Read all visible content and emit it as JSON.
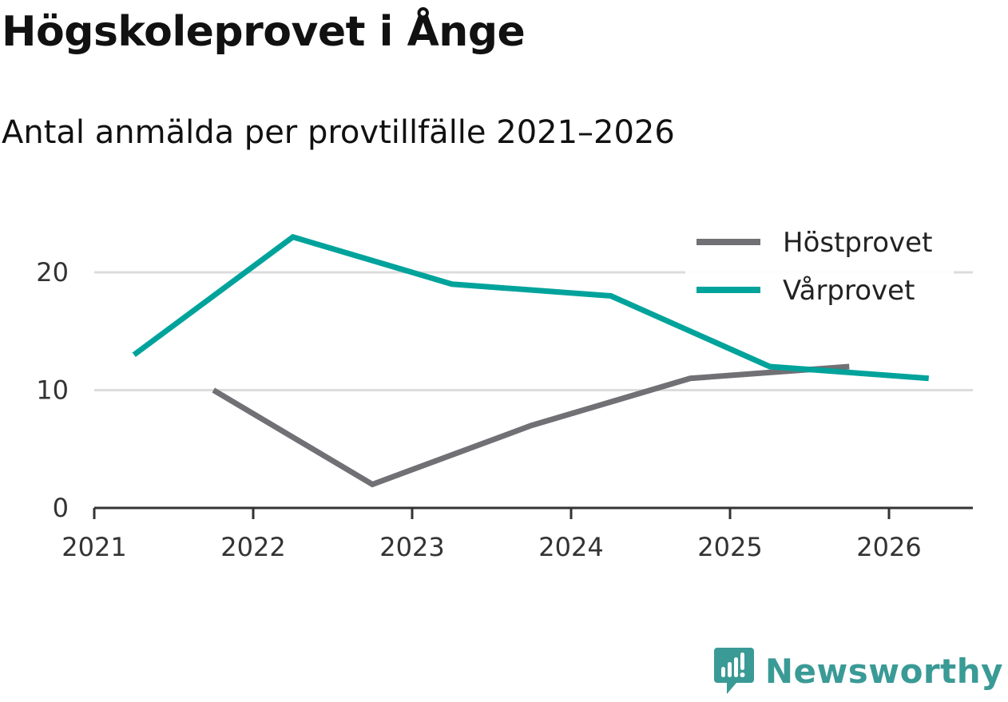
{
  "chart_data": {
    "type": "line",
    "title": "Högskoleprovet i Ånge",
    "subtitle": "Antal anmälda per provtillfälle 2021–2026",
    "xlabel": "",
    "ylabel": "",
    "x_ticks": [
      "2021",
      "2022",
      "2023",
      "2024",
      "2025",
      "2026"
    ],
    "y_ticks": [
      "0",
      "10",
      "20"
    ],
    "xlim": [
      2021,
      2026.55
    ],
    "ylim": [
      0,
      24
    ],
    "legend": "top-right",
    "grid": true,
    "series": [
      {
        "name": "Höstprovet",
        "color": "#707075",
        "x": [
          2021.75,
          2022.75,
          2023.75,
          2024.75,
          2025.75
        ],
        "y": [
          10,
          2,
          7,
          11,
          12
        ]
      },
      {
        "name": "Vårprovet",
        "color": "#00a39b",
        "x": [
          2021.25,
          2022.25,
          2023.25,
          2024.25,
          2025.25,
          2026.25
        ],
        "y": [
          13,
          23,
          19,
          18,
          12,
          11
        ]
      }
    ]
  },
  "branding": {
    "name": "Newsworthy",
    "icon": "newsworthy-logo-icon",
    "color": "#3a9a96"
  }
}
